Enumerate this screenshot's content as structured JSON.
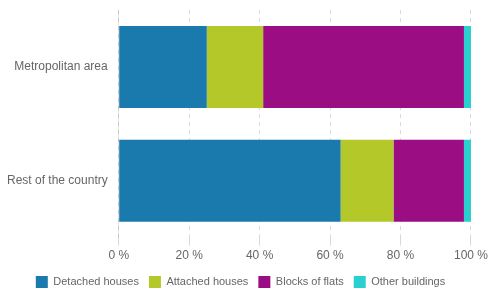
{
  "chart_data": {
    "type": "bar",
    "orientation": "horizontal",
    "stacked": true,
    "categories": [
      "Metropolitan area",
      "Rest of the country"
    ],
    "series": [
      {
        "name": "Detached houses",
        "color": "#1a7aad",
        "values": [
          25,
          63
        ]
      },
      {
        "name": "Attached houses",
        "color": "#b5c829",
        "values": [
          16,
          15
        ]
      },
      {
        "name": "Blocks of flats",
        "color": "#9b0d82",
        "values": [
          57,
          20
        ]
      },
      {
        "name": "Other buildings",
        "color": "#2acfcf",
        "values": [
          2,
          2
        ]
      }
    ],
    "xlim": [
      0,
      100
    ],
    "xticks": [
      {
        "value": 0,
        "label": "0 %"
      },
      {
        "value": 20,
        "label": "20 %"
      },
      {
        "value": 40,
        "label": "40 %"
      },
      {
        "value": 60,
        "label": "60 %"
      },
      {
        "value": 80,
        "label": "80 %"
      },
      {
        "value": 100,
        "label": "100 %"
      }
    ],
    "grid": true,
    "legend": "bottom"
  }
}
